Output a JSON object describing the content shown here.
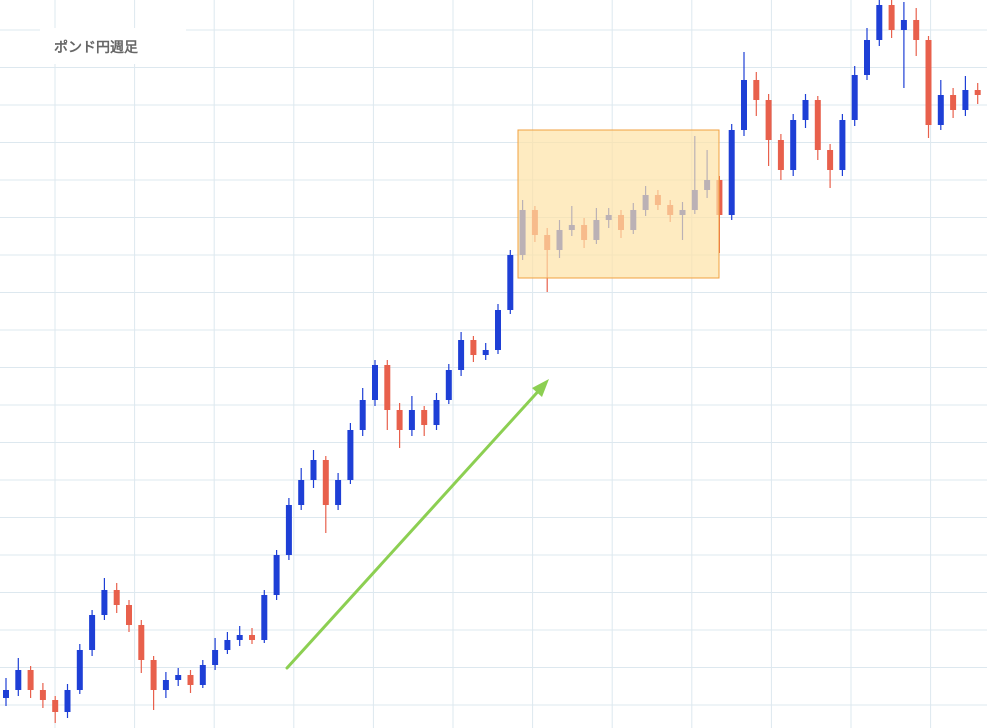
{
  "chart_data": {
    "type": "candlestick",
    "title": "ポンド円週足",
    "ylim": [
      0,
      728
    ],
    "up_color": "#1e3fd6",
    "down_color": "#e8604c",
    "open": [
      30,
      38,
      58,
      38,
      28,
      16,
      38,
      78,
      113,
      138,
      123,
      103,
      68,
      38,
      48,
      53,
      43,
      63,
      78,
      88,
      93,
      88,
      133,
      173,
      223,
      248,
      268,
      223,
      248,
      298,
      328,
      363,
      318,
      298,
      318,
      303,
      328,
      358,
      388,
      373,
      378,
      418,
      473,
      518,
      493,
      478,
      498,
      503,
      488,
      508,
      513,
      498,
      518,
      533,
      523,
      513,
      518,
      538,
      548,
      513,
      598,
      648,
      628,
      588,
      558,
      608,
      628,
      578,
      558,
      608,
      653,
      688,
      723,
      698,
      708,
      688,
      603,
      633,
      618,
      638
    ],
    "high": [
      50,
      70,
      62,
      45,
      32,
      44,
      84,
      118,
      150,
      145,
      128,
      108,
      72,
      56,
      60,
      58,
      68,
      90,
      96,
      102,
      100,
      138,
      178,
      230,
      260,
      278,
      272,
      255,
      305,
      340,
      368,
      368,
      325,
      332,
      322,
      335,
      364,
      396,
      392,
      385,
      424,
      478,
      528,
      522,
      500,
      508,
      522,
      510,
      520,
      520,
      518,
      525,
      542,
      538,
      528,
      526,
      592,
      578,
      552,
      604,
      676,
      656,
      634,
      594,
      614,
      634,
      632,
      584,
      614,
      662,
      700,
      728,
      728,
      726,
      720,
      692,
      648,
      640,
      652,
      645
    ],
    "low": [
      22,
      32,
      30,
      20,
      5,
      10,
      34,
      72,
      108,
      115,
      96,
      55,
      18,
      30,
      42,
      35,
      40,
      58,
      74,
      82,
      84,
      85,
      128,
      168,
      218,
      240,
      195,
      218,
      244,
      292,
      322,
      298,
      280,
      292,
      292,
      298,
      324,
      352,
      366,
      368,
      374,
      414,
      468,
      486,
      436,
      470,
      492,
      480,
      484,
      500,
      490,
      494,
      512,
      518,
      506,
      488,
      514,
      530,
      475,
      508,
      592,
      612,
      562,
      548,
      552,
      600,
      568,
      540,
      552,
      602,
      648,
      682,
      690,
      640,
      672,
      590,
      598,
      610,
      612,
      624
    ],
    "close": [
      38,
      58,
      38,
      28,
      16,
      38,
      78,
      113,
      138,
      123,
      103,
      68,
      38,
      48,
      53,
      43,
      63,
      78,
      88,
      93,
      88,
      133,
      173,
      223,
      248,
      268,
      223,
      248,
      298,
      328,
      363,
      318,
      298,
      318,
      303,
      328,
      358,
      388,
      373,
      378,
      418,
      473,
      518,
      493,
      478,
      498,
      503,
      488,
      508,
      513,
      498,
      518,
      533,
      523,
      513,
      518,
      538,
      548,
      513,
      598,
      648,
      628,
      588,
      558,
      608,
      628,
      578,
      558,
      608,
      653,
      688,
      723,
      698,
      708,
      688,
      603,
      633,
      618,
      638,
      633
    ]
  }
}
